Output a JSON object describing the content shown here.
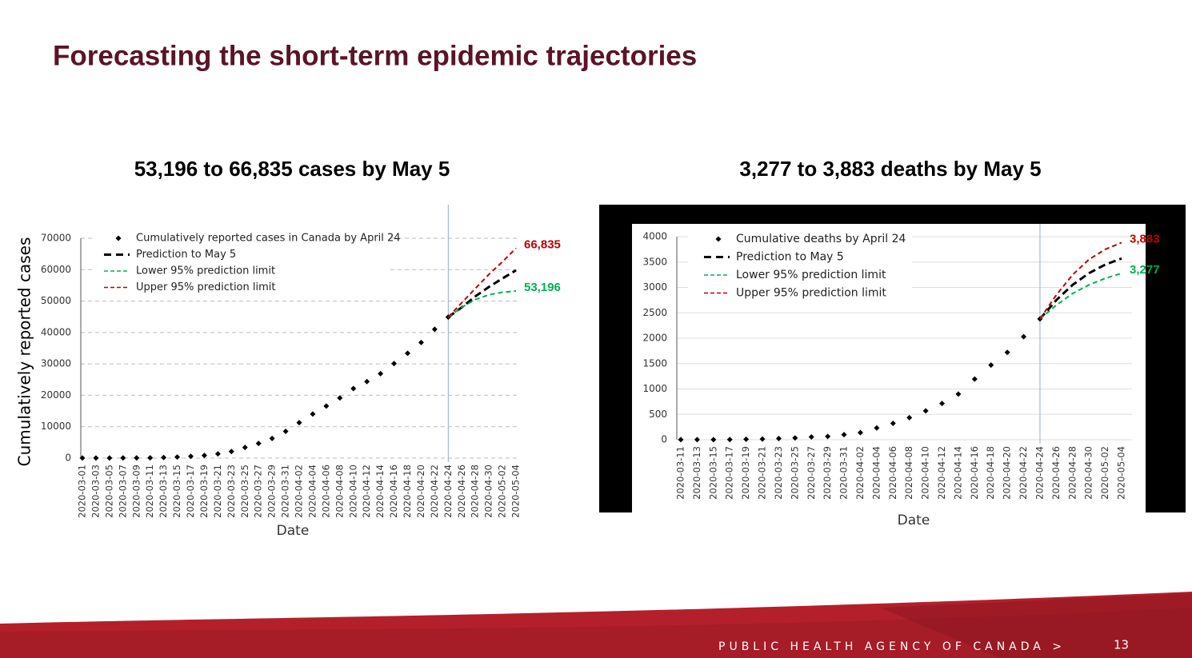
{
  "slide": {
    "title": "Forecasting the short-term epidemic trajectories",
    "footer": "PUBLIC HEALTH AGENCY OF CANADA >",
    "page_number": "13"
  },
  "chart_data": [
    {
      "type": "line",
      "title": "53,196 to 66,835 cases by May 5",
      "y_label": "Cumulatively reported cases",
      "x_label": "Date",
      "categories": [
        "2020-03-01",
        "2020-03-03",
        "2020-03-05",
        "2020-03-07",
        "2020-03-09",
        "2020-03-11",
        "2020-03-13",
        "2020-03-15",
        "2020-03-17",
        "2020-03-19",
        "2020-03-21",
        "2020-03-23",
        "2020-03-25",
        "2020-03-27",
        "2020-03-29",
        "2020-03-31",
        "2020-04-02",
        "2020-04-04",
        "2020-04-06",
        "2020-04-08",
        "2020-04-10",
        "2020-04-12",
        "2020-04-14",
        "2020-04-16",
        "2020-04-18",
        "2020-04-20",
        "2020-04-22",
        "2020-04-24",
        "2020-04-26",
        "2020-04-28",
        "2020-04-30",
        "2020-05-02",
        "2020-05-04"
      ],
      "ylim": [
        0,
        70000
      ],
      "yticks": [
        0,
        10000,
        20000,
        30000,
        40000,
        50000,
        60000,
        70000
      ],
      "grid": true,
      "grid_style": "dashed",
      "legend": "upper left",
      "reference_line": "2020-04-24",
      "series": [
        {
          "name": "Cumulatively reported cases in Canada by April 24",
          "color": "#000000",
          "marker": "diamond",
          "values": [
            24,
            30,
            37,
            57,
            77,
            103,
            193,
            341,
            569,
            846,
            1384,
            2088,
            3409,
            4675,
            6280,
            8527,
            11283,
            14018,
            16563,
            19141,
            22148,
            24383,
            26897,
            30106,
            33383,
            36800,
            41000,
            44900,
            null,
            null,
            null,
            null,
            null
          ]
        },
        {
          "name": "Prediction to May 5",
          "color": "#000000",
          "marker": "dashed",
          "values": [
            null,
            null,
            null,
            null,
            null,
            null,
            null,
            null,
            null,
            null,
            null,
            null,
            null,
            null,
            null,
            null,
            null,
            null,
            null,
            null,
            null,
            null,
            null,
            null,
            null,
            null,
            null,
            44900,
            48000,
            51500,
            54500,
            57200,
            59800
          ]
        },
        {
          "name": "Lower 95% prediction limit",
          "color": "#00b050",
          "marker": "dashed",
          "end_label": "53,196",
          "values": [
            null,
            null,
            null,
            null,
            null,
            null,
            null,
            null,
            null,
            null,
            null,
            null,
            null,
            null,
            null,
            null,
            null,
            null,
            null,
            null,
            null,
            null,
            null,
            null,
            null,
            null,
            null,
            44900,
            48000,
            50500,
            52000,
            52800,
            53196
          ]
        },
        {
          "name": "Upper 95% prediction limit",
          "color": "#c00000",
          "marker": "dashed",
          "end_label": "66,835",
          "values": [
            null,
            null,
            null,
            null,
            null,
            null,
            null,
            null,
            null,
            null,
            null,
            null,
            null,
            null,
            null,
            null,
            null,
            null,
            null,
            null,
            null,
            null,
            null,
            null,
            null,
            null,
            null,
            44900,
            49500,
            54000,
            58500,
            62500,
            66835
          ]
        }
      ]
    },
    {
      "type": "line",
      "title": "3,277 to 3,883 deaths by May 5",
      "x_label": "Date",
      "categories": [
        "2020-03-11",
        "2020-03-13",
        "2020-03-15",
        "2020-03-17",
        "2020-03-19",
        "2020-03-21",
        "2020-03-23",
        "2020-03-25",
        "2020-03-27",
        "2020-03-29",
        "2020-03-31",
        "2020-04-02",
        "2020-04-04",
        "2020-04-06",
        "2020-04-08",
        "2020-04-10",
        "2020-04-12",
        "2020-04-14",
        "2020-04-16",
        "2020-04-18",
        "2020-04-20",
        "2020-04-22",
        "2020-04-24",
        "2020-04-26",
        "2020-04-28",
        "2020-04-30",
        "2020-05-02",
        "2020-05-04"
      ],
      "ylim": [
        0,
        4000
      ],
      "yticks": [
        0,
        500,
        1000,
        1500,
        2000,
        2500,
        3000,
        3500,
        4000
      ],
      "grid": true,
      "grid_style": "solid",
      "legend": "upper left",
      "reference_line": "2020-04-24",
      "series": [
        {
          "name": "Cumulative deaths by April 24",
          "color": "#000000",
          "marker": "diamond",
          "values": [
            1,
            1,
            1,
            4,
            9,
            13,
            24,
            35,
            55,
            65,
            101,
            139,
            233,
            323,
            436,
            569,
            714,
            900,
            1195,
            1470,
            1720,
            2030,
            2380,
            null,
            null,
            null,
            null,
            null
          ]
        },
        {
          "name": "Prediction to May 5",
          "color": "#000000",
          "marker": "dashed",
          "values": [
            null,
            null,
            null,
            null,
            null,
            null,
            null,
            null,
            null,
            null,
            null,
            null,
            null,
            null,
            null,
            null,
            null,
            null,
            null,
            null,
            null,
            null,
            2380,
            2750,
            3050,
            3280,
            3450,
            3570
          ]
        },
        {
          "name": "Lower 95% prediction limit",
          "color": "#00b050",
          "marker": "dashed",
          "end_label": "3,277",
          "values": [
            null,
            null,
            null,
            null,
            null,
            null,
            null,
            null,
            null,
            null,
            null,
            null,
            null,
            null,
            null,
            null,
            null,
            null,
            null,
            null,
            null,
            null,
            2380,
            2650,
            2880,
            3050,
            3180,
            3277
          ]
        },
        {
          "name": "Upper 95% prediction limit",
          "color": "#c00000",
          "marker": "dashed",
          "end_label": "3,883",
          "values": [
            null,
            null,
            null,
            null,
            null,
            null,
            null,
            null,
            null,
            null,
            null,
            null,
            null,
            null,
            null,
            null,
            null,
            null,
            null,
            null,
            null,
            null,
            2380,
            2850,
            3250,
            3550,
            3750,
            3883
          ]
        }
      ]
    }
  ]
}
